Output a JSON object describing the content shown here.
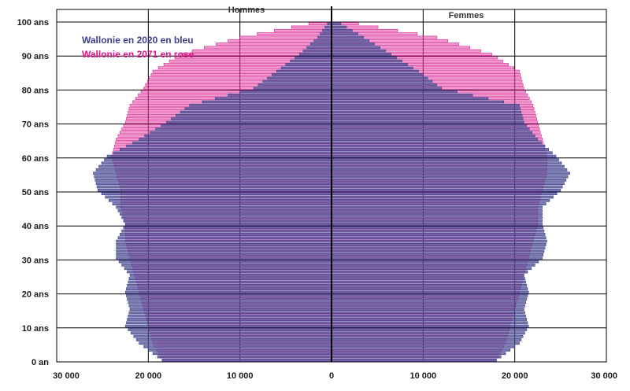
{
  "chart_data": {
    "type": "bar",
    "orientation": "horizontal-population-pyramid",
    "side_labels": {
      "left": "Hommes",
      "right": "Femmes"
    },
    "legend": [
      {
        "text": "Wallonie en 2020  en bleu",
        "color": "#3d3f8c"
      },
      {
        "text": "Wallonie en 2071 en rose",
        "color": "#e0168c"
      }
    ],
    "age_tick_labels": [
      "0 an",
      "10 ans",
      "20 ans",
      "30 ans",
      "40 ans",
      "50 ans",
      "60 ans",
      "70 ans",
      "80 ans",
      "90 ans",
      "100 ans"
    ],
    "x_tick_labels": [
      "30 000",
      "20 000",
      "10 000",
      "0",
      "10 000",
      "20 000",
      "30 000"
    ],
    "xlim": [
      -30000,
      30000
    ],
    "age_range": [
      0,
      100
    ],
    "grid": true,
    "colors": {
      "series_2020": "#4a4c93",
      "series_2020_stroke": "#3d3f8c",
      "series_2071": "#d81b8f",
      "series_2071_fill": "#e64aa6",
      "grid": "#000000",
      "axis": "#000000"
    },
    "series": [
      {
        "name": "Wallonie en 2020",
        "ages": [
          0,
          5,
          10,
          15,
          20,
          25,
          30,
          35,
          40,
          45,
          50,
          55,
          60,
          65,
          70,
          75,
          80,
          85,
          90,
          95,
          100
        ],
        "men": [
          18500,
          21000,
          22500,
          22000,
          22500,
          22000,
          23500,
          23500,
          22500,
          23500,
          25500,
          26000,
          24500,
          21000,
          18000,
          15500,
          8500,
          6000,
          3500,
          1500,
          200
        ],
        "women": [
          18000,
          20500,
          21500,
          21000,
          21500,
          21000,
          23000,
          23500,
          23000,
          23000,
          25000,
          26000,
          24500,
          22500,
          21000,
          20500,
          12000,
          9500,
          6500,
          3500,
          400
        ]
      },
      {
        "name": "Wallonie en 2071",
        "ages": [
          0,
          5,
          10,
          15,
          20,
          25,
          30,
          35,
          40,
          45,
          50,
          55,
          60,
          65,
          70,
          75,
          80,
          85,
          90,
          95,
          100
        ],
        "men": [
          18500,
          19500,
          20000,
          20500,
          21000,
          21500,
          22000,
          22500,
          22500,
          23000,
          23000,
          23500,
          24000,
          23500,
          22500,
          22000,
          20500,
          19500,
          16500,
          10000,
          600
        ],
        "women": [
          18000,
          19000,
          19500,
          20000,
          20500,
          21000,
          21500,
          22000,
          22500,
          22500,
          23000,
          23500,
          23500,
          23000,
          22500,
          22000,
          21000,
          20500,
          17500,
          11500,
          800
        ]
      }
    ]
  }
}
